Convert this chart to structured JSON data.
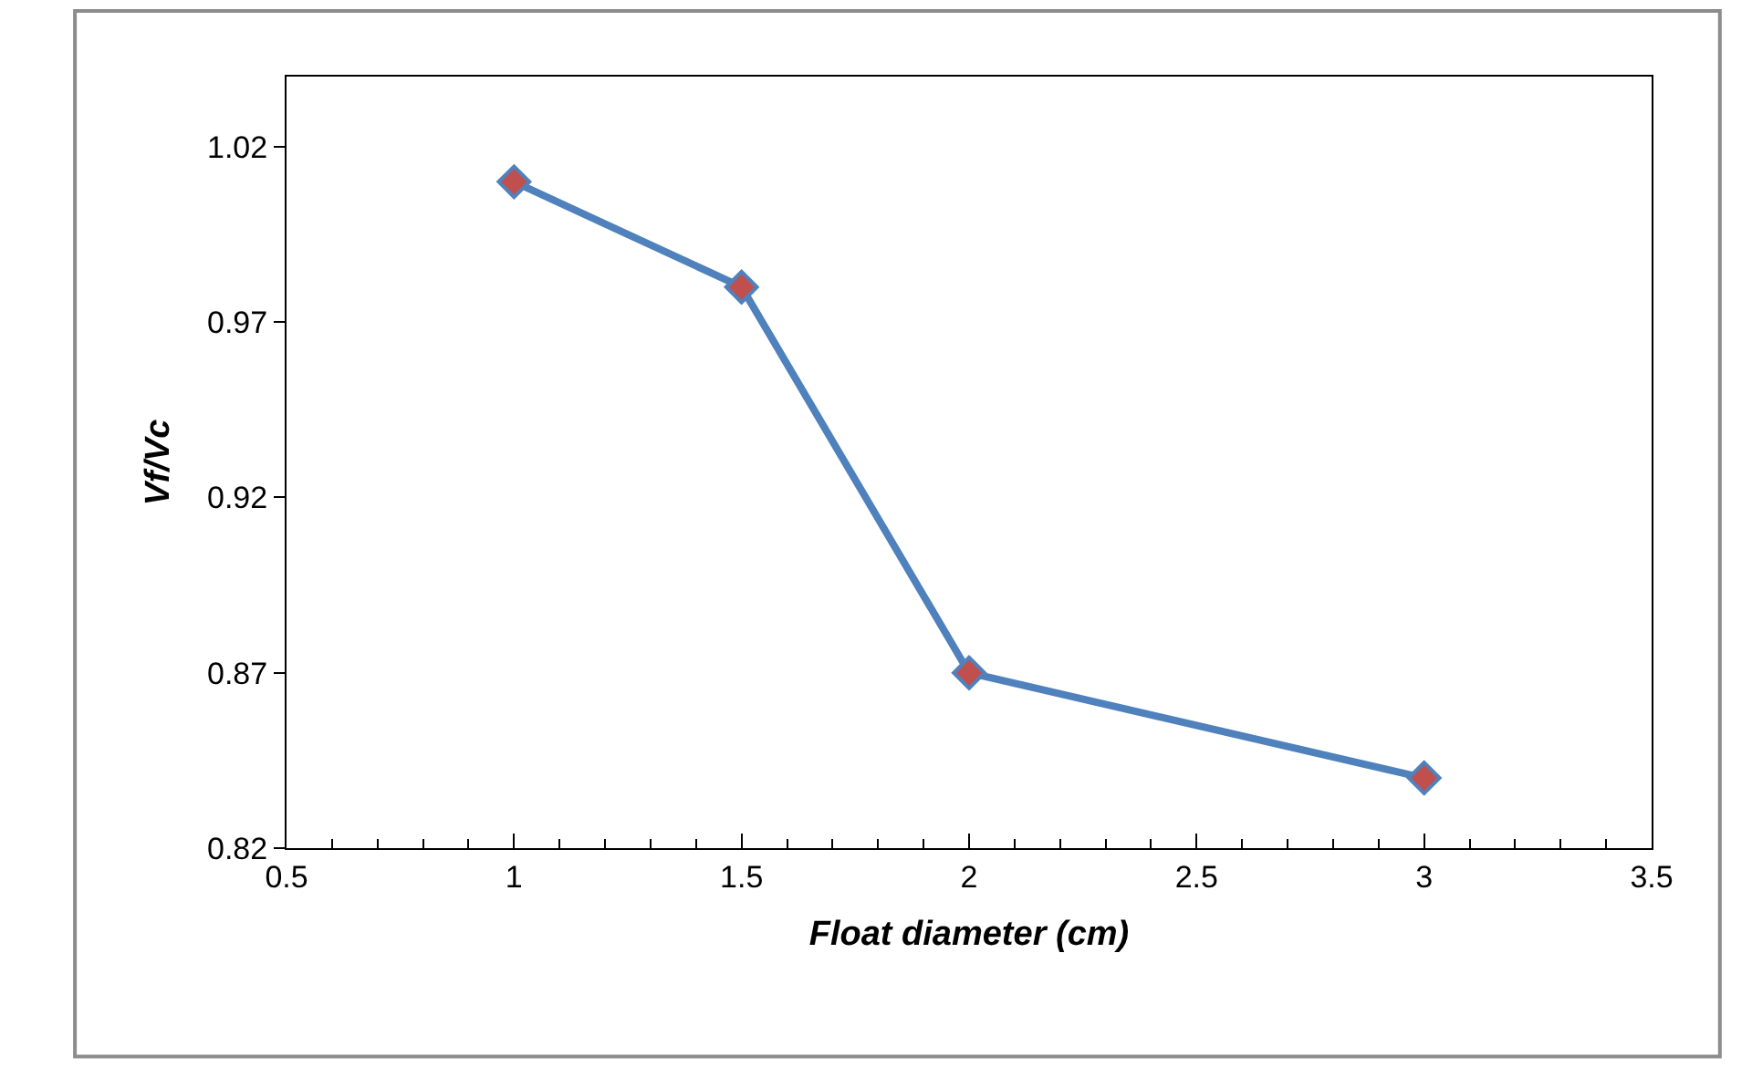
{
  "chart_data": {
    "type": "line",
    "xlabel": "Float diameter (cm)",
    "ylabel": "Vf/Vc",
    "x": [
      1,
      1.5,
      2,
      3
    ],
    "series": [
      {
        "color": "#4f81bd",
        "colors": [
          "#c0504d",
          "#c0504d",
          "#c0504d",
          "#c0504d"
        ],
        "values": [
          1.01,
          0.98,
          0.87,
          0.84
        ]
      }
    ],
    "marker": "diamond",
    "line_style": "solid",
    "xlim": [
      0.5,
      3.5
    ],
    "xticks": [
      0.5,
      1,
      1.5,
      2,
      2.5,
      3,
      3.5
    ],
    "ylim": [
      0.82,
      1.04
    ],
    "yticks": [
      0.82,
      0.87,
      0.92,
      0.97,
      1.02
    ]
  }
}
